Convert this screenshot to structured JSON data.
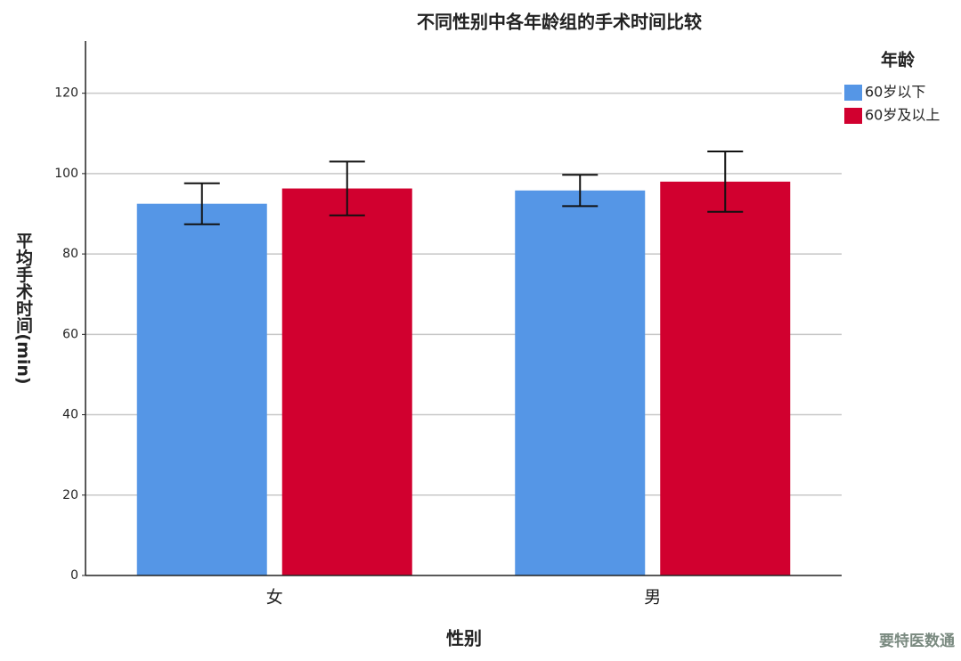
{
  "chart_data": {
    "type": "bar",
    "title": "不同性别中各年龄组的手术时间比较",
    "x_label": "性别",
    "y_label": "平均手术时间(min)",
    "legend_title": "年龄",
    "categories": [
      "女",
      "男"
    ],
    "series": [
      {
        "name": "60岁以下",
        "color": "#5596e6",
        "values": [
          92.5,
          95.8
        ],
        "errors": [
          5.1,
          3.9
        ]
      },
      {
        "name": "60岁及以上",
        "color": "#d1002f",
        "values": [
          96.3,
          98.0
        ],
        "errors": [
          6.7,
          7.5
        ]
      }
    ],
    "ylim": [
      0,
      133
    ],
    "yticks": [
      0,
      20,
      40,
      60,
      80,
      100,
      120
    ],
    "grid": true,
    "legend": "right"
  },
  "watermark": "要特医数通"
}
